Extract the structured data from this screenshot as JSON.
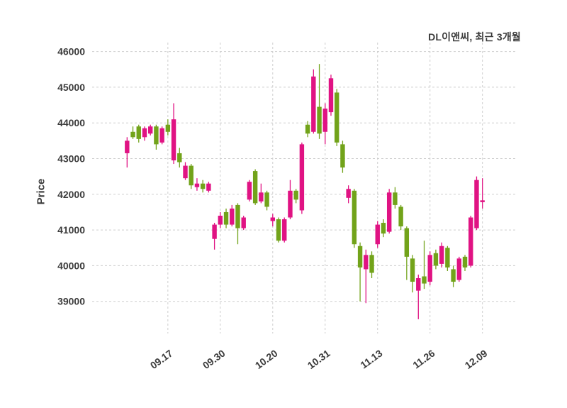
{
  "title": "DL이앤씨, 최근 3개월",
  "chart_data": {
    "type": "candlestick",
    "title": "DL이앤씨, 최근 3개월",
    "ylabel": "Price",
    "xlabel": "",
    "grid": true,
    "ylim": [
      38100,
      46250
    ],
    "yticks": [
      39000,
      40000,
      41000,
      42000,
      43000,
      44000,
      45000,
      46000
    ],
    "xtick_labels": [
      "09.17",
      "09.30",
      "10.20",
      "10.31",
      "11.13",
      "11.26",
      "12.09"
    ],
    "xtick_indices": [
      7,
      16,
      25,
      34,
      43,
      52,
      61
    ],
    "up_color": "#e01383",
    "down_color": "#72a31a",
    "grid_color": "#cdcdcd",
    "candles": [
      [
        "09.08",
        43150,
        43600,
        42750,
        43500
      ],
      [
        "09.09",
        43750,
        43900,
        43550,
        43600
      ],
      [
        "09.10",
        43900,
        43950,
        43450,
        43550
      ],
      [
        "09.11",
        43600,
        43900,
        43500,
        43850
      ],
      [
        "09.12",
        43700,
        43950,
        43650,
        43900
      ],
      [
        "09.15",
        43900,
        43950,
        43250,
        43400
      ],
      [
        "09.16",
        43450,
        43900,
        43400,
        43850
      ],
      [
        "09.17",
        43950,
        44100,
        43650,
        43750
      ],
      [
        "09.18",
        42950,
        44550,
        42850,
        44100
      ],
      [
        "09.19",
        43150,
        43300,
        42750,
        42900
      ],
      [
        "09.22",
        42450,
        42900,
        42400,
        42800
      ],
      [
        "09.23",
        42800,
        42850,
        42150,
        42250
      ],
      [
        "09.24",
        42200,
        42450,
        42100,
        42300
      ],
      [
        "09.25",
        42300,
        42400,
        42050,
        42150
      ],
      [
        "09.26",
        42100,
        42350,
        42050,
        42300
      ],
      [
        "09.29",
        40750,
        41200,
        40450,
        41150
      ],
      [
        "09.30",
        41150,
        41500,
        41050,
        41400
      ],
      [
        "10.01",
        41500,
        41600,
        41050,
        41150
      ],
      [
        "10.02",
        41150,
        41700,
        41100,
        41600
      ],
      [
        "10.10",
        41700,
        41750,
        40600,
        41050
      ],
      [
        "10.13",
        41050,
        41400,
        41000,
        41350
      ],
      [
        "10.14",
        41850,
        42400,
        41800,
        42350
      ],
      [
        "10.15",
        42650,
        42700,
        41700,
        41750
      ],
      [
        "10.16",
        41800,
        42300,
        41750,
        42050
      ],
      [
        "10.17",
        42050,
        42100,
        41550,
        41650
      ],
      [
        "10.20",
        41250,
        41450,
        41100,
        41350
      ],
      [
        "10.21",
        41300,
        41350,
        40650,
        40700
      ],
      [
        "10.22",
        40700,
        41350,
        40650,
        41300
      ],
      [
        "10.23",
        41350,
        42400,
        41300,
        42100
      ],
      [
        "10.24",
        42100,
        42150,
        41750,
        41850
      ],
      [
        "10.27",
        41550,
        43450,
        41450,
        43400
      ],
      [
        "10.28",
        43950,
        44050,
        43600,
        43700
      ],
      [
        "10.29",
        43750,
        45500,
        43700,
        45300
      ],
      [
        "10.30",
        44450,
        45650,
        43550,
        43700
      ],
      [
        "10.31",
        43750,
        44550,
        43400,
        44400
      ],
      [
        "11.03",
        44300,
        45350,
        44200,
        45250
      ],
      [
        "11.04",
        44850,
        44950,
        43350,
        43450
      ],
      [
        "11.05",
        43400,
        43500,
        42600,
        42750
      ],
      [
        "11.06",
        41900,
        42250,
        41750,
        42150
      ],
      [
        "11.07",
        42100,
        42150,
        40500,
        40600
      ],
      [
        "11.10",
        40550,
        40650,
        39000,
        39950
      ],
      [
        "11.11",
        39900,
        40450,
        38950,
        40300
      ],
      [
        "11.12",
        40300,
        40400,
        39650,
        39800
      ],
      [
        "11.13",
        40600,
        41250,
        40500,
        41150
      ],
      [
        "11.14",
        41200,
        41300,
        40800,
        40900
      ],
      [
        "11.17",
        40950,
        42150,
        40900,
        42050
      ],
      [
        "11.18",
        42050,
        42200,
        41600,
        41700
      ],
      [
        "11.19",
        41650,
        41700,
        41000,
        41100
      ],
      [
        "11.20",
        41050,
        41100,
        39600,
        40250
      ],
      [
        "11.21",
        40200,
        40300,
        39250,
        39550
      ],
      [
        "11.24",
        39300,
        39750,
        38500,
        39650
      ],
      [
        "11.25",
        39700,
        40700,
        39350,
        39500
      ],
      [
        "11.26",
        39550,
        40400,
        39450,
        40300
      ],
      [
        "11.27",
        40350,
        40450,
        39900,
        40000
      ],
      [
        "11.28",
        40050,
        40650,
        39950,
        40550
      ],
      [
        "12.01",
        40500,
        40550,
        39850,
        39950
      ],
      [
        "12.02",
        39900,
        40000,
        39400,
        39550
      ],
      [
        "12.03",
        39600,
        40250,
        39550,
        40200
      ],
      [
        "12.04",
        40250,
        40300,
        39850,
        39950
      ],
      [
        "12.05",
        40000,
        41400,
        39950,
        41350
      ],
      [
        "12.08",
        41050,
        42500,
        41000,
        42400
      ],
      [
        "12.09",
        41780,
        42450,
        41600,
        41830
      ]
    ]
  }
}
